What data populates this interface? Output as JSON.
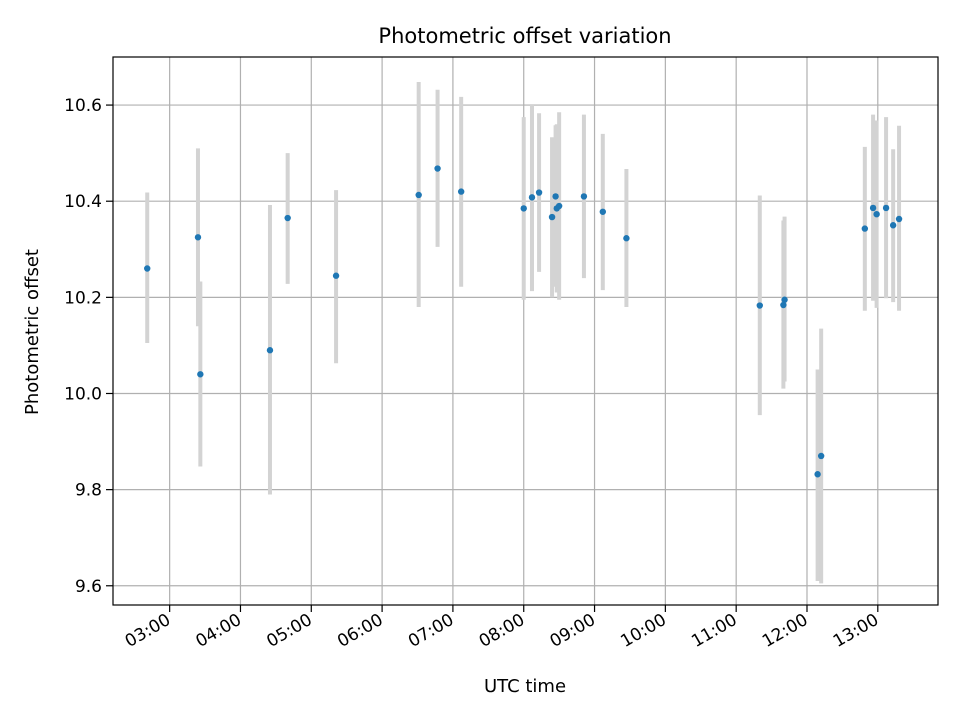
{
  "chart_data": {
    "type": "scatter",
    "title": "Photometric offset variation",
    "xlabel": "UTC time",
    "ylabel": "Photometric offset",
    "grid": true,
    "x_tick_labels": [
      "03:00",
      "04:00",
      "05:00",
      "06:00",
      "07:00",
      "08:00",
      "09:00",
      "10:00",
      "11:00",
      "12:00",
      "13:00"
    ],
    "x_ticks": [
      "03:00",
      "04:00",
      "05:00",
      "06:00",
      "07:00",
      "08:00",
      "09:00",
      "10:00",
      "11:00",
      "12:00",
      "13:00"
    ],
    "xlim": [
      "02:12",
      "13:51"
    ],
    "y_ticks": [
      9.6,
      9.8,
      10.0,
      10.2,
      10.4,
      10.6
    ],
    "ylim": [
      9.56,
      10.7
    ],
    "point_color": "#1f77b4",
    "errorbar_color": "#d3d3d3",
    "points": [
      {
        "time": "02:41",
        "y": 10.26,
        "yerr_low": 10.105,
        "yerr_high": 10.418
      },
      {
        "time": "03:24",
        "y": 10.325,
        "yerr_low": 10.14,
        "yerr_high": 10.51
      },
      {
        "time": "03:26",
        "y": 10.04,
        "yerr_low": 9.848,
        "yerr_high": 10.233
      },
      {
        "time": "04:25",
        "y": 10.09,
        "yerr_low": 9.79,
        "yerr_high": 10.392
      },
      {
        "time": "04:40",
        "y": 10.365,
        "yerr_low": 10.228,
        "yerr_high": 10.5
      },
      {
        "time": "05:21",
        "y": 10.245,
        "yerr_low": 10.063,
        "yerr_high": 10.423
      },
      {
        "time": "06:31",
        "y": 10.413,
        "yerr_low": 10.18,
        "yerr_high": 10.648
      },
      {
        "time": "06:47",
        "y": 10.468,
        "yerr_low": 10.305,
        "yerr_high": 10.632
      },
      {
        "time": "07:07",
        "y": 10.42,
        "yerr_low": 10.222,
        "yerr_high": 10.617
      },
      {
        "time": "08:00",
        "y": 10.385,
        "yerr_low": 10.195,
        "yerr_high": 10.575
      },
      {
        "time": "08:07",
        "y": 10.408,
        "yerr_low": 10.213,
        "yerr_high": 10.602
      },
      {
        "time": "08:13",
        "y": 10.418,
        "yerr_low": 10.253,
        "yerr_high": 10.583
      },
      {
        "time": "08:24",
        "y": 10.367,
        "yerr_low": 10.2,
        "yerr_high": 10.533
      },
      {
        "time": "08:27",
        "y": 10.41,
        "yerr_low": 10.222,
        "yerr_high": 10.558
      },
      {
        "time": "08:28",
        "y": 10.385,
        "yerr_low": 10.21,
        "yerr_high": 10.56
      },
      {
        "time": "08:30",
        "y": 10.39,
        "yerr_low": 10.195,
        "yerr_high": 10.585
      },
      {
        "time": "08:51",
        "y": 10.41,
        "yerr_low": 10.24,
        "yerr_high": 10.58
      },
      {
        "time": "09:07",
        "y": 10.378,
        "yerr_low": 10.215,
        "yerr_high": 10.54
      },
      {
        "time": "09:27",
        "y": 10.323,
        "yerr_low": 10.18,
        "yerr_high": 10.467
      },
      {
        "time": "11:20",
        "y": 10.183,
        "yerr_low": 9.955,
        "yerr_high": 10.412
      },
      {
        "time": "11:40",
        "y": 10.184,
        "yerr_low": 10.01,
        "yerr_high": 10.36
      },
      {
        "time": "11:41",
        "y": 10.195,
        "yerr_low": 10.025,
        "yerr_high": 10.368
      },
      {
        "time": "12:09",
        "y": 9.832,
        "yerr_low": 9.61,
        "yerr_high": 10.05
      },
      {
        "time": "12:12",
        "y": 9.87,
        "yerr_low": 9.605,
        "yerr_high": 10.135
      },
      {
        "time": "12:49",
        "y": 10.343,
        "yerr_low": 10.172,
        "yerr_high": 10.513
      },
      {
        "time": "12:56",
        "y": 10.386,
        "yerr_low": 10.193,
        "yerr_high": 10.58
      },
      {
        "time": "12:59",
        "y": 10.373,
        "yerr_low": 10.178,
        "yerr_high": 10.568
      },
      {
        "time": "13:07",
        "y": 10.386,
        "yerr_low": 10.198,
        "yerr_high": 10.575
      },
      {
        "time": "13:13",
        "y": 10.35,
        "yerr_low": 10.19,
        "yerr_high": 10.508
      },
      {
        "time": "13:18",
        "y": 10.363,
        "yerr_low": 10.172,
        "yerr_high": 10.557
      }
    ]
  }
}
